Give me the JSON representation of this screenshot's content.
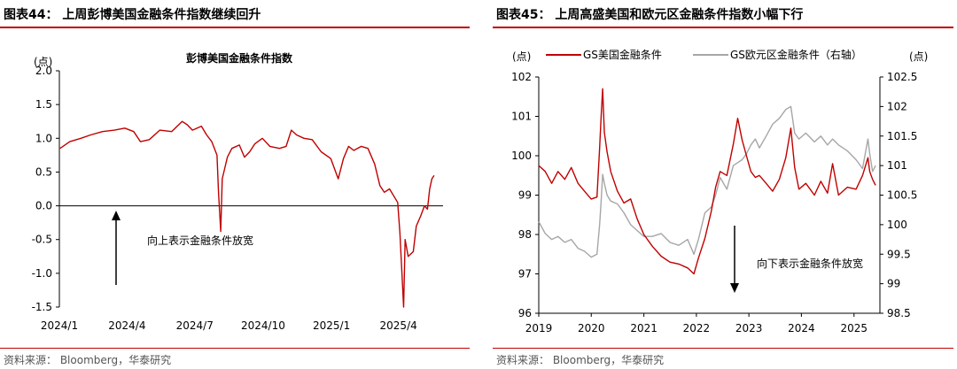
{
  "figures": [
    {
      "title": "图表44： 上周彭博美国金融条件指数继续回升",
      "source": "资料来源： Bloomberg，华泰研究"
    },
    {
      "title": "图表45： 上周高盛美国和欧元区金融条件指数小幅下行",
      "source": "资料来源： Bloomberg，华泰研究"
    }
  ],
  "colors": {
    "accent": "#c00000",
    "series_red": "#c00000",
    "series_gray": "#a6a6a6",
    "axis": "#000000"
  },
  "chart_data": [
    {
      "type": "line",
      "title": "彭博美国金融条件指数",
      "unit_label": "(点)",
      "xlabel": "",
      "ylabel": "",
      "x_tick_labels": [
        "2024/1",
        "2024/4",
        "2024/7",
        "2024/10",
        "2025/1",
        "2025/4"
      ],
      "x_tick_dates": [
        "2024-01-01",
        "2024-04-01",
        "2024-07-01",
        "2024-10-01",
        "2025-01-01",
        "2025-04-01"
      ],
      "xlim": [
        "2024-01-01",
        "2025-05-31"
      ],
      "ylim": [
        -1.5,
        2.0
      ],
      "y_ticks": [
        -1.5,
        -1.0,
        -0.5,
        0.0,
        0.5,
        1.0,
        1.5,
        2.0
      ],
      "y_tick_labels": [
        "-1.5",
        "-1.0",
        "-0.5",
        "0.0",
        "0.5",
        "1.0",
        "1.5",
        "2.0"
      ],
      "grid": false,
      "zero_line": true,
      "annotation": {
        "text": "向上表示金融条件放宽",
        "arrow": "up"
      },
      "series": [
        {
          "name": "",
          "color": "#c00000",
          "points": [
            [
              "2024-01-02",
              0.85
            ],
            [
              "2024-01-15",
              0.95
            ],
            [
              "2024-01-30",
              1.0
            ],
            [
              "2024-02-12",
              1.05
            ],
            [
              "2024-02-28",
              1.1
            ],
            [
              "2024-03-15",
              1.12
            ],
            [
              "2024-03-29",
              1.15
            ],
            [
              "2024-04-10",
              1.1
            ],
            [
              "2024-04-19",
              0.95
            ],
            [
              "2024-05-01",
              0.98
            ],
            [
              "2024-05-15",
              1.12
            ],
            [
              "2024-05-31",
              1.1
            ],
            [
              "2024-06-14",
              1.25
            ],
            [
              "2024-06-21",
              1.2
            ],
            [
              "2024-06-28",
              1.12
            ],
            [
              "2024-07-10",
              1.18
            ],
            [
              "2024-07-17",
              1.05
            ],
            [
              "2024-07-24",
              0.95
            ],
            [
              "2024-07-31",
              0.75
            ],
            [
              "2024-08-02",
              0.2
            ],
            [
              "2024-08-05",
              -0.38
            ],
            [
              "2024-08-07",
              0.4
            ],
            [
              "2024-08-14",
              0.72
            ],
            [
              "2024-08-20",
              0.85
            ],
            [
              "2024-08-30",
              0.9
            ],
            [
              "2024-09-06",
              0.72
            ],
            [
              "2024-09-13",
              0.8
            ],
            [
              "2024-09-20",
              0.92
            ],
            [
              "2024-09-30",
              1.0
            ],
            [
              "2024-10-10",
              0.88
            ],
            [
              "2024-10-23",
              0.85
            ],
            [
              "2024-11-01",
              0.88
            ],
            [
              "2024-11-08",
              1.12
            ],
            [
              "2024-11-15",
              1.05
            ],
            [
              "2024-11-25",
              1.0
            ],
            [
              "2024-12-06",
              0.98
            ],
            [
              "2024-12-18",
              0.8
            ],
            [
              "2024-12-31",
              0.7
            ],
            [
              "2025-01-10",
              0.4
            ],
            [
              "2025-01-17",
              0.7
            ],
            [
              "2025-01-24",
              0.88
            ],
            [
              "2025-01-31",
              0.82
            ],
            [
              "2025-02-10",
              0.88
            ],
            [
              "2025-02-19",
              0.85
            ],
            [
              "2025-02-28",
              0.62
            ],
            [
              "2025-03-07",
              0.3
            ],
            [
              "2025-03-13",
              0.2
            ],
            [
              "2025-03-20",
              0.25
            ],
            [
              "2025-03-31",
              0.05
            ],
            [
              "2025-04-03",
              -0.4
            ],
            [
              "2025-04-08",
              -1.5
            ],
            [
              "2025-04-10",
              -0.5
            ],
            [
              "2025-04-14",
              -0.75
            ],
            [
              "2025-04-21",
              -0.68
            ],
            [
              "2025-04-25",
              -0.3
            ],
            [
              "2025-05-01",
              -0.15
            ],
            [
              "2025-05-06",
              0.0
            ],
            [
              "2025-05-10",
              -0.05
            ],
            [
              "2025-05-13",
              0.25
            ],
            [
              "2025-05-16",
              0.4
            ],
            [
              "2025-05-19",
              0.45
            ]
          ]
        }
      ]
    },
    {
      "type": "line",
      "unit_label": "(点)",
      "unit_label_right": "(点)",
      "xlabel": "",
      "ylabel": "",
      "x_tick_labels": [
        "2019",
        "2020",
        "2021",
        "2022",
        "2023",
        "2024",
        "2025"
      ],
      "x_tick_dates": [
        "2019-01-01",
        "2020-01-01",
        "2021-01-01",
        "2022-01-01",
        "2023-01-01",
        "2024-01-01",
        "2025-01-01"
      ],
      "xlim": [
        "2019-01-01",
        "2025-06-30"
      ],
      "ylim": [
        96,
        102
      ],
      "y_ticks": [
        96,
        97,
        98,
        99,
        100,
        101,
        102
      ],
      "y_tick_labels": [
        "96",
        "97",
        "98",
        "99",
        "100",
        "101",
        "102"
      ],
      "ylim_right": [
        98.5,
        102.5
      ],
      "y_ticks_right": [
        98.5,
        99,
        99.5,
        100,
        100.5,
        101,
        101.5,
        102,
        102.5
      ],
      "y_tick_labels_right": [
        "98.5",
        "99",
        "99.5",
        "100",
        "100.5",
        "101",
        "101.5",
        "102",
        "102.5"
      ],
      "grid": false,
      "legend": "top",
      "annotation": {
        "text": "向下表示金融条件放宽",
        "arrow": "down"
      },
      "series": [
        {
          "name": "GS美国金融条件",
          "color": "#c00000",
          "axis": "left",
          "points": [
            [
              "2019-01-01",
              99.75
            ],
            [
              "2019-02-15",
              99.6
            ],
            [
              "2019-04-01",
              99.3
            ],
            [
              "2019-05-15",
              99.6
            ],
            [
              "2019-07-01",
              99.4
            ],
            [
              "2019-08-15",
              99.7
            ],
            [
              "2019-10-01",
              99.3
            ],
            [
              "2019-11-15",
              99.1
            ],
            [
              "2020-01-01",
              98.9
            ],
            [
              "2020-02-10",
              98.95
            ],
            [
              "2020-02-28",
              100.2
            ],
            [
              "2020-03-10",
              101.0
            ],
            [
              "2020-03-20",
              101.7
            ],
            [
              "2020-04-01",
              100.6
            ],
            [
              "2020-04-20",
              100.1
            ],
            [
              "2020-05-15",
              99.6
            ],
            [
              "2020-07-01",
              99.1
            ],
            [
              "2020-08-15",
              98.8
            ],
            [
              "2020-10-01",
              98.9
            ],
            [
              "2020-11-15",
              98.4
            ],
            [
              "2021-01-01",
              98.0
            ],
            [
              "2021-03-01",
              97.7
            ],
            [
              "2021-05-01",
              97.45
            ],
            [
              "2021-07-01",
              97.3
            ],
            [
              "2021-09-01",
              97.25
            ],
            [
              "2021-11-01",
              97.15
            ],
            [
              "2021-12-15",
              97.0
            ],
            [
              "2022-01-15",
              97.4
            ],
            [
              "2022-03-01",
              97.9
            ],
            [
              "2022-04-15",
              98.6
            ],
            [
              "2022-05-15",
              99.2
            ],
            [
              "2022-06-15",
              99.6
            ],
            [
              "2022-08-01",
              99.5
            ],
            [
              "2022-09-15",
              100.3
            ],
            [
              "2022-10-15",
              100.95
            ],
            [
              "2022-11-15",
              100.4
            ],
            [
              "2022-12-15",
              100.0
            ],
            [
              "2023-01-15",
              99.6
            ],
            [
              "2023-02-15",
              99.45
            ],
            [
              "2023-03-15",
              99.5
            ],
            [
              "2023-05-01",
              99.3
            ],
            [
              "2023-06-15",
              99.1
            ],
            [
              "2023-08-01",
              99.4
            ],
            [
              "2023-09-15",
              99.95
            ],
            [
              "2023-10-20",
              100.7
            ],
            [
              "2023-11-15",
              99.7
            ],
            [
              "2023-12-15",
              99.15
            ],
            [
              "2024-02-01",
              99.3
            ],
            [
              "2024-04-01",
              99.0
            ],
            [
              "2024-05-15",
              99.35
            ],
            [
              "2024-07-01",
              99.05
            ],
            [
              "2024-08-05",
              99.8
            ],
            [
              "2024-09-15",
              99.0
            ],
            [
              "2024-11-15",
              99.2
            ],
            [
              "2025-01-15",
              99.15
            ],
            [
              "2025-03-01",
              99.5
            ],
            [
              "2025-04-08",
              99.95
            ],
            [
              "2025-04-20",
              99.6
            ],
            [
              "2025-05-10",
              99.4
            ],
            [
              "2025-05-31",
              99.25
            ]
          ]
        },
        {
          "name": "GS欧元区金融条件（右轴）",
          "color": "#a6a6a6",
          "axis": "right",
          "points": [
            [
              "2019-01-01",
              100.05
            ],
            [
              "2019-02-15",
              99.85
            ],
            [
              "2019-04-01",
              99.75
            ],
            [
              "2019-05-15",
              99.8
            ],
            [
              "2019-07-01",
              99.7
            ],
            [
              "2019-08-15",
              99.75
            ],
            [
              "2019-10-01",
              99.6
            ],
            [
              "2019-11-15",
              99.55
            ],
            [
              "2020-01-01",
              99.45
            ],
            [
              "2020-02-10",
              99.5
            ],
            [
              "2020-02-28",
              100.0
            ],
            [
              "2020-03-10",
              100.4
            ],
            [
              "2020-03-20",
              100.85
            ],
            [
              "2020-04-01",
              100.7
            ],
            [
              "2020-04-20",
              100.5
            ],
            [
              "2020-05-15",
              100.4
            ],
            [
              "2020-07-01",
              100.35
            ],
            [
              "2020-08-15",
              100.2
            ],
            [
              "2020-10-01",
              100.0
            ],
            [
              "2020-11-15",
              99.9
            ],
            [
              "2021-01-01",
              99.8
            ],
            [
              "2021-03-01",
              99.8
            ],
            [
              "2021-05-01",
              99.85
            ],
            [
              "2021-07-01",
              99.7
            ],
            [
              "2021-09-01",
              99.65
            ],
            [
              "2021-11-01",
              99.75
            ],
            [
              "2021-12-15",
              99.5
            ],
            [
              "2022-01-15",
              99.75
            ],
            [
              "2022-03-01",
              100.2
            ],
            [
              "2022-04-15",
              100.3
            ],
            [
              "2022-05-15",
              100.5
            ],
            [
              "2022-06-15",
              100.8
            ],
            [
              "2022-08-01",
              100.6
            ],
            [
              "2022-09-15",
              101.0
            ],
            [
              "2022-10-15",
              101.05
            ],
            [
              "2022-11-15",
              101.1
            ],
            [
              "2022-12-15",
              101.2
            ],
            [
              "2023-01-15",
              101.35
            ],
            [
              "2023-02-15",
              101.45
            ],
            [
              "2023-03-15",
              101.3
            ],
            [
              "2023-05-01",
              101.5
            ],
            [
              "2023-06-15",
              101.7
            ],
            [
              "2023-08-01",
              101.8
            ],
            [
              "2023-09-15",
              101.95
            ],
            [
              "2023-10-20",
              102.0
            ],
            [
              "2023-11-15",
              101.55
            ],
            [
              "2023-12-15",
              101.45
            ],
            [
              "2024-02-01",
              101.55
            ],
            [
              "2024-04-01",
              101.4
            ],
            [
              "2024-05-15",
              101.5
            ],
            [
              "2024-07-01",
              101.35
            ],
            [
              "2024-08-05",
              101.45
            ],
            [
              "2024-09-15",
              101.35
            ],
            [
              "2024-11-15",
              101.25
            ],
            [
              "2025-01-15",
              101.1
            ],
            [
              "2025-03-01",
              100.95
            ],
            [
              "2025-04-08",
              101.45
            ],
            [
              "2025-04-20",
              101.2
            ],
            [
              "2025-05-10",
              100.9
            ],
            [
              "2025-05-31",
              101.0
            ]
          ]
        }
      ]
    }
  ]
}
